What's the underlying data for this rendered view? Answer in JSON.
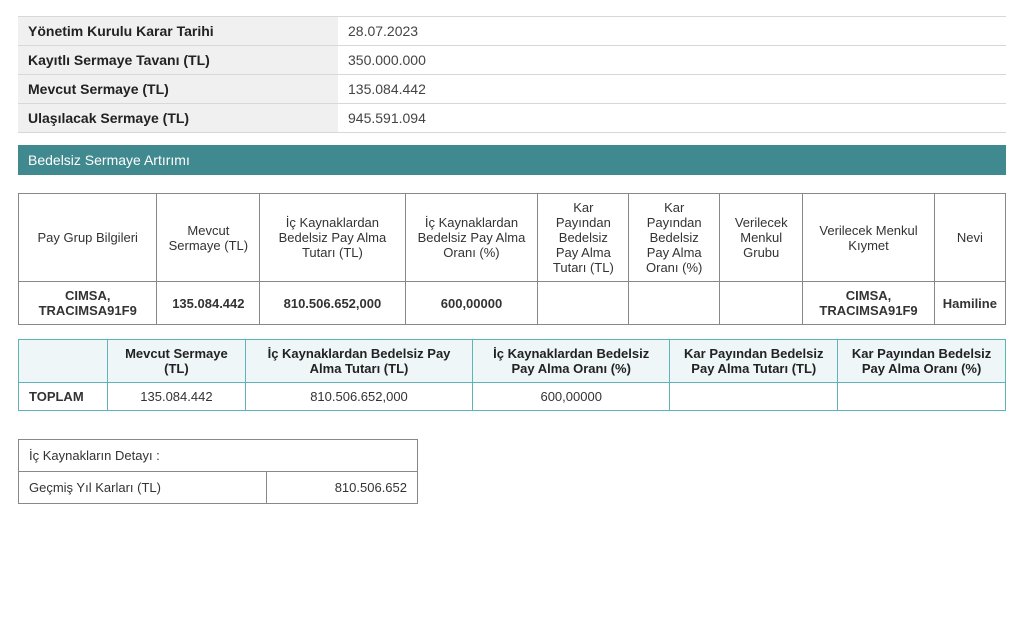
{
  "info": {
    "rows": [
      {
        "label": "Yönetim Kurulu Karar Tarihi",
        "value": "28.07.2023"
      },
      {
        "label": "Kayıtlı Sermaye Tavanı (TL)",
        "value": "350.000.000"
      },
      {
        "label": "Mevcut Sermaye (TL)",
        "value": "135.084.442"
      },
      {
        "label": "Ulaşılacak Sermaye (TL)",
        "value": "945.591.094"
      }
    ]
  },
  "section_title": "Bedelsiz Sermaye Artırımı",
  "main_table": {
    "headers": [
      "Pay Grup Bilgileri",
      "Mevcut Sermaye (TL)",
      "İç Kaynaklardan Bedelsiz Pay Alma Tutarı (TL)",
      "İç Kaynaklardan Bedelsiz Pay Alma Oranı (%)",
      "Kar Payından Bedelsiz Pay Alma Tutarı (TL)",
      "Kar Payından Bedelsiz Pay Alma Oranı (%)",
      "Verilecek Menkul Grubu",
      "Verilecek Menkul Kıymet",
      "Nevi"
    ],
    "row": {
      "pay_grup": "CIMSA, TRACIMSA91F9",
      "mevcut": "135.084.442",
      "ic_tutar": "810.506.652,000",
      "ic_oran": "600,00000",
      "kar_tutar": "",
      "kar_oran": "",
      "menkul_grubu": "",
      "menkul_kiymet": "CIMSA, TRACIMSA91F9",
      "nevi": "Hamiline"
    },
    "col_widths_pct": [
      15,
      11,
      16,
      15,
      10,
      10,
      9,
      15,
      8
    ]
  },
  "summary_table": {
    "headers": [
      "",
      "Mevcut Sermaye (TL)",
      "İç Kaynaklardan Bedelsiz Pay Alma Tutarı (TL)",
      "İç Kaynaklardan Bedelsiz Pay Alma Oranı (%)",
      "Kar Payından Bedelsiz Pay Alma Tutarı (TL)",
      "Kar Payından Bedelsiz Pay Alma Oranı (%)"
    ],
    "row": {
      "label": "TOPLAM",
      "mevcut": "135.084.442",
      "ic_tutar": "810.506.652,000",
      "ic_oran": "600,00000",
      "kar_tutar": "",
      "kar_oran": ""
    },
    "col_widths_pct": [
      9,
      14,
      23,
      20,
      17,
      17
    ]
  },
  "detail": {
    "title": "İç Kaynakların Detayı :",
    "rows": [
      {
        "label": "Geçmiş Yıl Karları (TL)",
        "value": "810.506.652"
      }
    ]
  },
  "colors": {
    "section_bar": "#3f898f",
    "info_row_bg": "#f0f0f0",
    "summary_border": "#5fb3bb",
    "summary_header_bg": "#eef6f7",
    "main_border": "#888888"
  }
}
